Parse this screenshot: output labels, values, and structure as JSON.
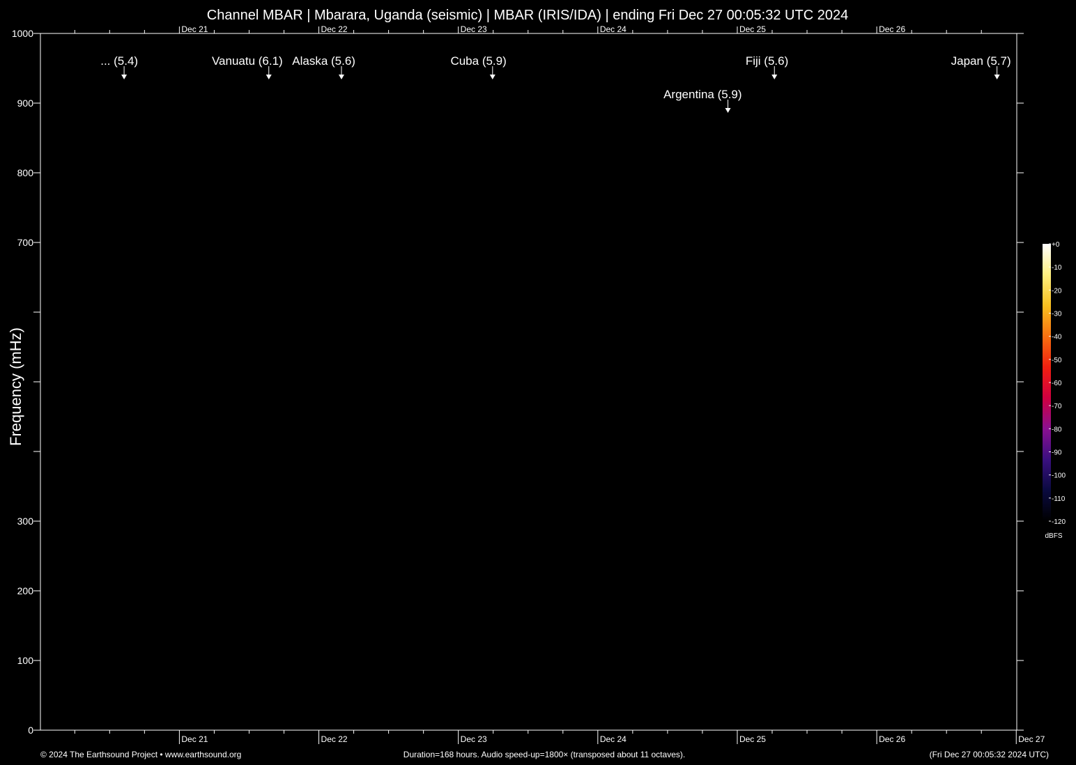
{
  "chart_data": {
    "type": "spectrogram",
    "title": "Channel MBAR | Mbarara, Uganda (seismic) | MBAR (IRIS/IDA) | ending Fri Dec 27 00:05:32 UTC 2024",
    "ylabel": "Frequency (mHz)",
    "ylim": [
      0,
      1000
    ],
    "yticks": [
      0,
      100,
      200,
      300,
      700,
      800,
      900,
      1000
    ],
    "yticks_unlabeled": [
      400,
      500,
      600
    ],
    "xlim": [
      0,
      168
    ],
    "xticks": [
      {
        "value": 23.91,
        "label": "Dec 21"
      },
      {
        "value": 47.91,
        "label": "Dec 22"
      },
      {
        "value": 71.91,
        "label": "Dec 23"
      },
      {
        "value": 95.91,
        "label": "Dec 24"
      },
      {
        "value": 119.91,
        "label": "Dec 25"
      },
      {
        "value": 143.91,
        "label": "Dec 26"
      },
      {
        "value": 167.91,
        "label": "Dec 27"
      }
    ],
    "xticks_top": [
      {
        "value": 23.91,
        "label": "Dec 21"
      },
      {
        "value": 47.91,
        "label": "Dec 22"
      },
      {
        "value": 71.91,
        "label": "Dec 23"
      },
      {
        "value": 95.91,
        "label": "Dec 24"
      },
      {
        "value": 119.91,
        "label": "Dec 25"
      },
      {
        "value": 143.91,
        "label": "Dec 26"
      }
    ],
    "xticks_minor": [
      5.91,
      11.91,
      17.91,
      29.91,
      35.91,
      41.91,
      53.91,
      59.91,
      65.91,
      77.91,
      83.91,
      89.91,
      101.91,
      107.91,
      113.91,
      125.91,
      131.91,
      137.91,
      149.91,
      155.91,
      161.91
    ],
    "events": [
      {
        "label": "... (5.4)",
        "x": 14.4
      },
      {
        "label": "Vanuatu (6.1)",
        "x": 39.3
      },
      {
        "label": "Alaska (5.6)",
        "x": 51.8
      },
      {
        "label": "Cuba (5.9)",
        "x": 77.8
      },
      {
        "label": "Argentina (5.9)",
        "x": 118.3
      },
      {
        "label": "Fiji (5.6)",
        "x": 126.3
      },
      {
        "label": "Japan (5.7)",
        "x": 164.6
      }
    ],
    "colorbar": {
      "label": "dBFS",
      "lim": [
        -120,
        0
      ],
      "ticks": [
        {
          "value": 0,
          "label": "+0"
        },
        -10,
        -20,
        -30,
        -40,
        -50,
        -60,
        -70,
        -80,
        -90,
        -100,
        -110,
        -120
      ],
      "colors": [
        "#000000",
        "#0a0a40",
        "#3a1080",
        "#8a1090",
        "#d00040",
        "#f02010",
        "#f87010",
        "#f8c020",
        "#fff080",
        "#ffffff"
      ]
    },
    "footer_left": "© 2024 The Earthsound Project • www.earthsound.org",
    "footer_center": "Duration=168 hours. Audio speed-up=1800× (transposed about 11 octaves).",
    "footer_right": "(Fri Dec 27 00:05:32 2024 UTC)"
  }
}
